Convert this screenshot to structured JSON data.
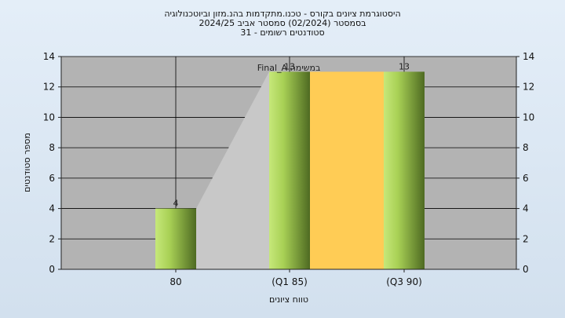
{
  "chart_data": {
    "type": "bar",
    "title_lines": [
      "היסטוגרמת ציונים בקורס - טכנו.מתקדמות בהנ.מזון וביוטכנולוגיה",
      "בסמסטר  (02/2024)  סמסטר אביב 2024/25",
      "סטודנטים רשומים - 31"
    ],
    "xlabel": "טווח ציונים",
    "ylabel": "מספר סטודנטים",
    "categories": [
      "80",
      "(Q1 85)",
      "(Q3 90)"
    ],
    "values": [
      4,
      13,
      13
    ],
    "data_labels": [
      "4",
      "13",
      "13"
    ],
    "ylim": [
      0,
      14
    ],
    "yticks": [
      0,
      2,
      4,
      6,
      8,
      10,
      12,
      14
    ],
    "annotation": "Final_A במשימה",
    "grid": true,
    "colors": {
      "plot_background": "#b3b3b3",
      "bar_light": "#c6e87a",
      "bar_dark": "#4e6a22",
      "iqr_band": "#ffcc55",
      "area_fill": "#c8c8c8"
    }
  }
}
